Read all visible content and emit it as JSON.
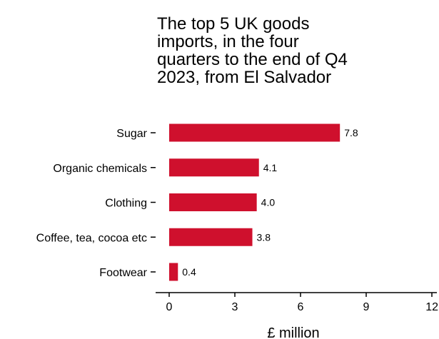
{
  "chart_data": {
    "type": "bar",
    "orientation": "horizontal",
    "title_lines": [
      "The top 5 UK goods",
      "imports, in the four",
      "quarters to the end of Q4",
      "2023, from El Salvador"
    ],
    "categories": [
      "Sugar",
      "Organic chemicals",
      "Clothing",
      "Coffee, tea, cocoa etc",
      "Footwear"
    ],
    "values": [
      7.8,
      4.1,
      4.0,
      3.8,
      0.4
    ],
    "value_labels": [
      "7.8",
      "4.1",
      "4.0",
      "3.8",
      "0.4"
    ],
    "xlabel": "£ million",
    "ylabel": "",
    "xlim": [
      0,
      12
    ],
    "x_ticks": [
      0,
      3,
      6,
      9,
      12
    ],
    "x_tick_labels": [
      "0",
      "3",
      "6",
      "9",
      "12"
    ],
    "bar_color": "#cf102d",
    "grid": false,
    "legend": "none"
  }
}
